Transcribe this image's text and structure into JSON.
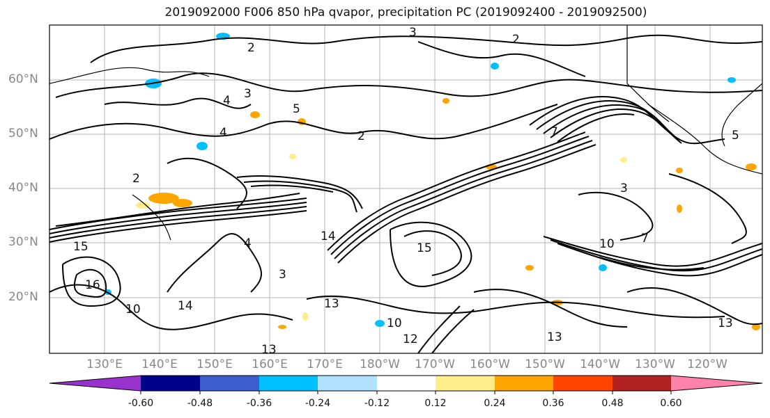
{
  "title": "2019092000 F006 850 hPa qvapor, precipitation PC (2019092400 - 2019092500)",
  "lat_labels": [
    "60°N",
    "50°N",
    "40°N",
    "30°N",
    "20°N"
  ],
  "lon_labels": [
    "130°E",
    "140°E",
    "150°E",
    "160°E",
    "170°E",
    "180°W",
    "170°W",
    "160°W",
    "150°W",
    "140°W",
    "130°W",
    "120°W"
  ],
  "contour_labels": [
    "2",
    "3",
    "4",
    "5",
    "7",
    "10",
    "12",
    "13",
    "14",
    "15",
    "16"
  ],
  "colorbar": {
    "ticks": [
      "-0.60",
      "-0.48",
      "-0.36",
      "-0.24",
      "-0.12",
      "0.12",
      "0.24",
      "0.36",
      "0.48",
      "0.60"
    ],
    "colors": [
      "#9932cc",
      "#00008b",
      "#3a5fcd",
      "#00bfff",
      "#b0e2ff",
      "#ffffff",
      "#ffec8b",
      "#ffa500",
      "#ff4500",
      "#b22222",
      "#ff82ab"
    ]
  }
}
